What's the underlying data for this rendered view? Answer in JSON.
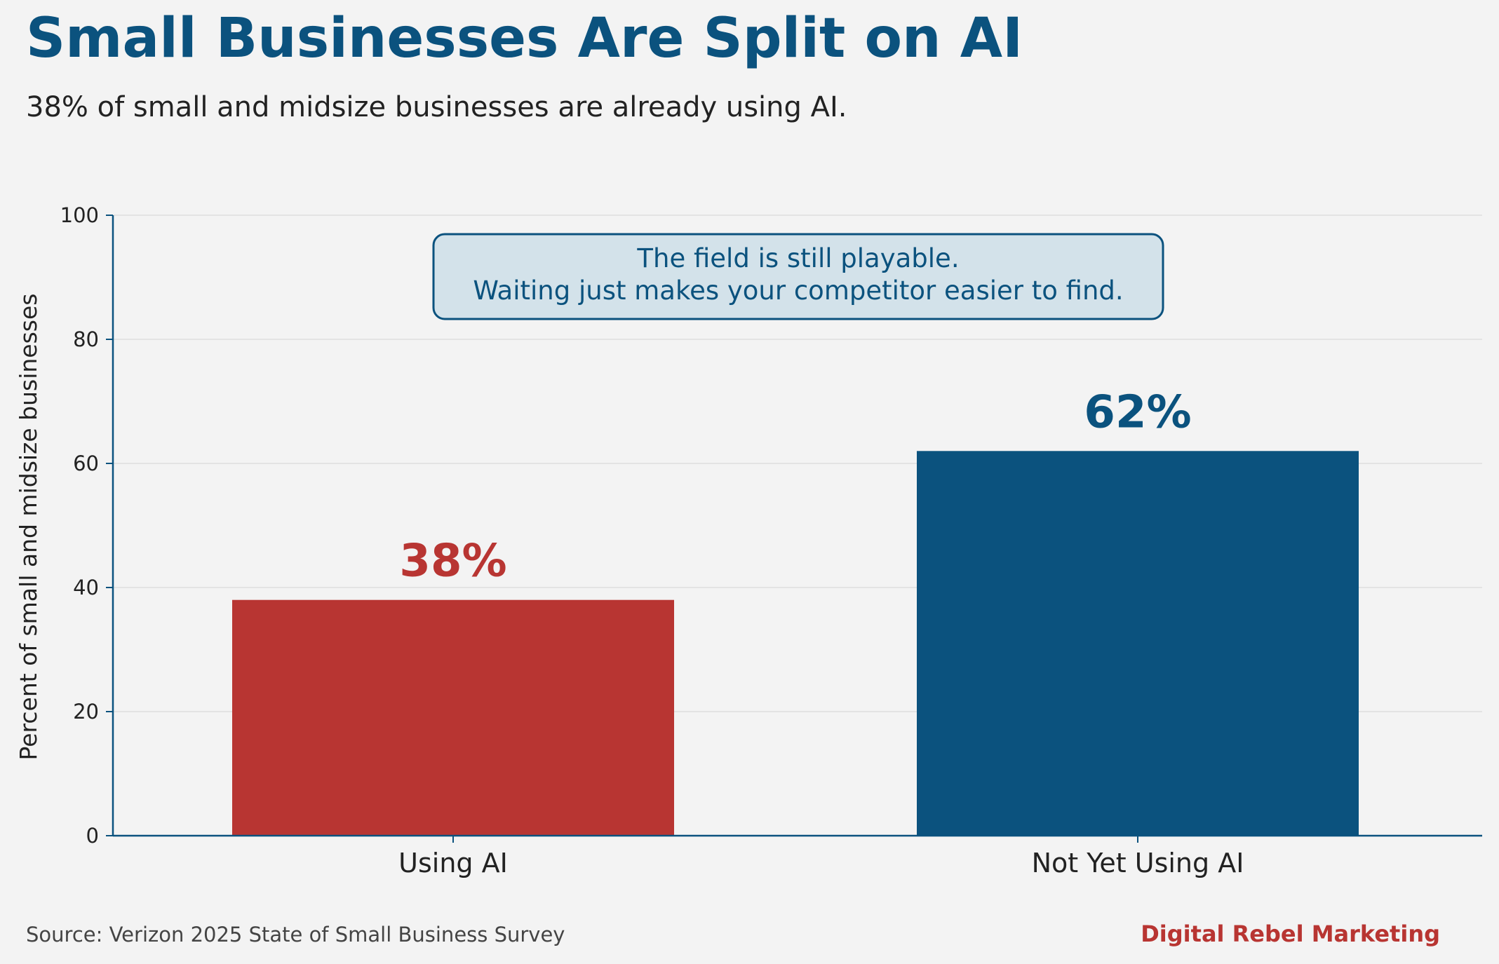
{
  "header": {
    "title": "Small Businesses Are Split on AI",
    "subtitle": "38% of small and midsize businesses are already using AI."
  },
  "chart_data": {
    "type": "bar",
    "categories": [
      "Using AI",
      "Not Yet Using AI"
    ],
    "values": [
      38,
      62
    ],
    "value_labels": [
      "38%",
      "62%"
    ],
    "colors": [
      "#b83532",
      "#0b527e"
    ],
    "ylabel": "Percent of small and midsize businesses",
    "xlabel": "",
    "ylim": [
      0,
      100
    ],
    "yticks": [
      0,
      20,
      40,
      60,
      80,
      100
    ],
    "grid": "horizontal",
    "annotation": {
      "line1": "The field is still playable.",
      "line2": "Waiting just makes your competitor easier to find."
    }
  },
  "footer": {
    "source": "Source: Verizon 2025 State of Small Business Survey",
    "brand": "Digital Rebel Marketing"
  },
  "colors": {
    "title": "#0b527e",
    "accent_red": "#b83532",
    "accent_blue": "#0b527e",
    "background": "#f3f3f3",
    "annotation_fill": "#d3e2ea"
  }
}
